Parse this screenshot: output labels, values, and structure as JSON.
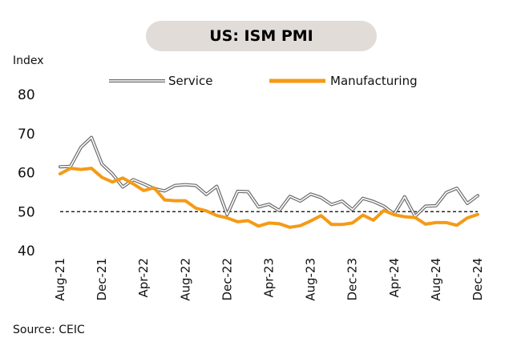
{
  "chart_data": {
    "type": "line",
    "title": "US: ISM PMI",
    "ylabel": "Index",
    "xlabel": "",
    "ylim": [
      40,
      80
    ],
    "yticks": [
      40,
      50,
      60,
      70,
      80
    ],
    "reference_line": 50,
    "legend_position": "top",
    "source": "Source: CEIC",
    "x_tick_labels": [
      {
        "index": 0,
        "label": "Aug-21"
      },
      {
        "index": 4,
        "label": "Dec-21"
      },
      {
        "index": 8,
        "label": "Apr-22"
      },
      {
        "index": 12,
        "label": "Aug-22"
      },
      {
        "index": 16,
        "label": "Dec-22"
      },
      {
        "index": 20,
        "label": "Apr-23"
      },
      {
        "index": 24,
        "label": "Aug-23"
      },
      {
        "index": 28,
        "label": "Dec-23"
      },
      {
        "index": 32,
        "label": "Apr-24"
      },
      {
        "index": 36,
        "label": "Aug-24"
      },
      {
        "index": 40,
        "label": "Dec-24"
      }
    ],
    "series": [
      {
        "name": "Service",
        "color": "#6b6b6b",
        "style": "outlined",
        "values": [
          61.5,
          61.6,
          66.5,
          69.0,
          62.2,
          59.7,
          56.3,
          58.2,
          57.1,
          55.9,
          55.3,
          56.7,
          56.9,
          56.7,
          54.4,
          56.5,
          49.2,
          55.2,
          55.1,
          51.2,
          51.9,
          50.3,
          53.9,
          52.7,
          54.5,
          53.6,
          51.8,
          52.7,
          50.5,
          53.4,
          52.6,
          51.4,
          49.4,
          53.8,
          48.8,
          51.4,
          51.5,
          54.9,
          56.0,
          52.1,
          54.1
        ]
      },
      {
        "name": "Manufacturing",
        "color": "#f59a16",
        "style": "solid",
        "values": [
          59.7,
          61.1,
          60.8,
          61.1,
          58.8,
          57.6,
          58.6,
          57.1,
          55.4,
          56.1,
          53.0,
          52.8,
          52.8,
          50.9,
          50.2,
          49.0,
          48.4,
          47.4,
          47.7,
          46.3,
          47.1,
          46.9,
          46.0,
          46.4,
          47.6,
          49.0,
          46.7,
          46.7,
          47.1,
          49.1,
          47.8,
          50.3,
          49.2,
          48.7,
          48.5,
          46.8,
          47.2,
          47.2,
          46.5,
          48.4,
          49.3
        ]
      }
    ]
  }
}
